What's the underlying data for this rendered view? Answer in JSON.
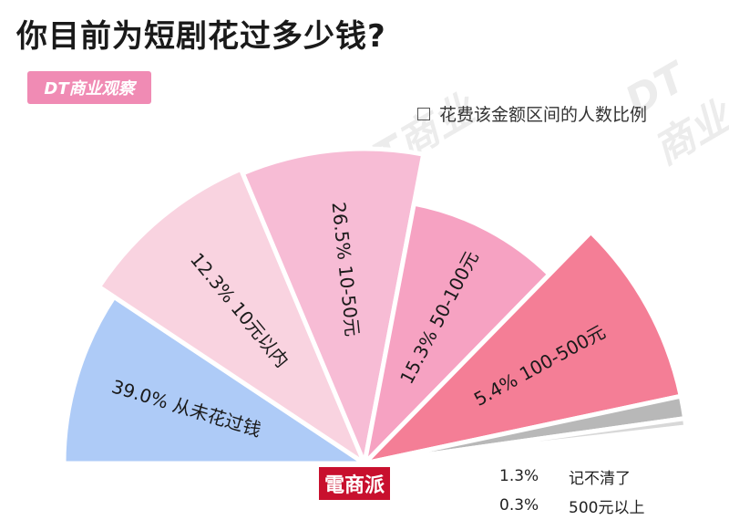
{
  "title": "你目前为短剧花过多少钱?",
  "logo_text": "DT商业观察",
  "watermark_text": "DT商业",
  "legend_text": "花费该金额区间的人数比例",
  "bottom_logo_text": "電商派",
  "colors": {
    "s0": "#aecbf7",
    "s1": "#f9d3e0",
    "s2": "#f7bcd5",
    "s3": "#f6a2c2",
    "s4": "#f47e96",
    "s5": "#b8b8b8",
    "s6": "#d8d8d8"
  },
  "chart_data": {
    "type": "pie",
    "title": "你目前为短剧花过多少钱?",
    "series_label": "花费该金额区间的人数比例",
    "unit": "%",
    "slices": [
      {
        "label": "从未花过钱",
        "value": 39.0,
        "value_label": "39.0%"
      },
      {
        "label": "10元以内",
        "value": 12.3,
        "value_label": "12.3%"
      },
      {
        "label": "10-50元",
        "value": 26.5,
        "value_label": "26.5%"
      },
      {
        "label": "50-100元",
        "value": 15.3,
        "value_label": "15.3%"
      },
      {
        "label": "100-500元",
        "value": 5.4,
        "value_label": "5.4%"
      },
      {
        "label": "记不清了",
        "value": 1.3,
        "value_label": "1.3%"
      },
      {
        "label": "500元以上",
        "value": 0.3,
        "value_label": "0.3%"
      }
    ]
  }
}
